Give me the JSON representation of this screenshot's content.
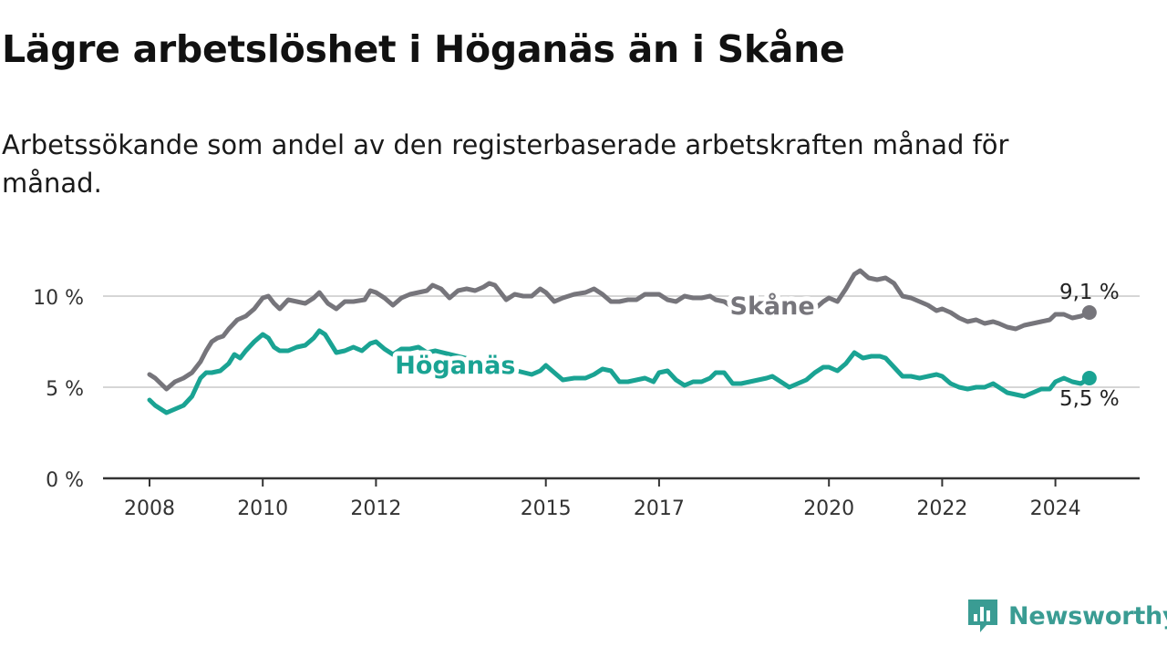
{
  "title": "Lägre arbetslöshet i Höganäs än i Skåne",
  "subtitle": "Arbetssökande som andel av den registerbaserade arbetskraften månad för månad.",
  "brand": {
    "name": "Newsworthy",
    "color": "#3a9c93",
    "icon": "newsworthy-logo-icon"
  },
  "chart_data": {
    "type": "line",
    "title": "Lägre arbetslöshet i Höganäs än i Skåne",
    "xlabel": "",
    "ylabel": "",
    "xlim": [
      2007.5,
      2025.3
    ],
    "ylim": [
      0,
      12
    ],
    "grid": true,
    "y_ticks": [
      {
        "value": 0,
        "label": "0 %"
      },
      {
        "value": 5,
        "label": "5 %"
      },
      {
        "value": 10,
        "label": "10 %"
      }
    ],
    "x_ticks": [
      {
        "value": 2008,
        "label": "2008"
      },
      {
        "value": 2010,
        "label": "2010"
      },
      {
        "value": 2012,
        "label": "2012"
      },
      {
        "value": 2015,
        "label": "2015"
      },
      {
        "value": 2017,
        "label": "2017"
      },
      {
        "value": 2020,
        "label": "2020"
      },
      {
        "value": 2022,
        "label": "2022"
      },
      {
        "value": 2024,
        "label": "2024"
      }
    ],
    "series": [
      {
        "name": "Skåne",
        "color": "#76757b",
        "label_at": 2019.0,
        "end_label": "9,1 %",
        "x": [
          2008.0,
          2008.1,
          2008.2,
          2008.3,
          2008.45,
          2008.6,
          2008.75,
          2008.9,
          2009.0,
          2009.1,
          2009.2,
          2009.3,
          2009.4,
          2009.55,
          2009.7,
          2009.85,
          2010.0,
          2010.1,
          2010.2,
          2010.3,
          2010.45,
          2010.6,
          2010.75,
          2010.9,
          2011.0,
          2011.15,
          2011.3,
          2011.45,
          2011.6,
          2011.8,
          2011.9,
          2012.0,
          2012.15,
          2012.3,
          2012.45,
          2012.6,
          2012.75,
          2012.9,
          2013.0,
          2013.15,
          2013.3,
          2013.45,
          2013.6,
          2013.75,
          2013.9,
          2014.0,
          2014.1,
          2014.3,
          2014.45,
          2014.6,
          2014.75,
          2014.9,
          2015.0,
          2015.15,
          2015.3,
          2015.5,
          2015.7,
          2015.85,
          2016.0,
          2016.15,
          2016.3,
          2016.45,
          2016.6,
          2016.75,
          2016.9,
          2017.0,
          2017.15,
          2017.3,
          2017.45,
          2017.6,
          2017.75,
          2017.9,
          2018.0,
          2018.15,
          2018.3,
          2018.45,
          2019.75,
          2019.9,
          2020.0,
          2020.15,
          2020.3,
          2020.45,
          2020.55,
          2020.7,
          2020.85,
          2021.0,
          2021.15,
          2021.3,
          2021.45,
          2021.6,
          2021.75,
          2021.9,
          2022.0,
          2022.15,
          2022.3,
          2022.45,
          2022.6,
          2022.75,
          2022.9,
          2023.0,
          2023.15,
          2023.3,
          2023.45,
          2023.6,
          2023.75,
          2023.9,
          2024.0,
          2024.15,
          2024.3,
          2024.45,
          2024.6
        ],
        "values": [
          5.7,
          5.5,
          5.2,
          4.9,
          5.3,
          5.5,
          5.8,
          6.4,
          7.0,
          7.5,
          7.7,
          7.8,
          8.2,
          8.7,
          8.9,
          9.3,
          9.9,
          10.0,
          9.6,
          9.3,
          9.8,
          9.7,
          9.6,
          9.9,
          10.2,
          9.6,
          9.3,
          9.7,
          9.7,
          9.8,
          10.3,
          10.2,
          9.9,
          9.5,
          9.9,
          10.1,
          10.2,
          10.3,
          10.6,
          10.4,
          9.9,
          10.3,
          10.4,
          10.3,
          10.5,
          10.7,
          10.6,
          9.8,
          10.1,
          10.0,
          10.0,
          10.4,
          10.2,
          9.7,
          9.9,
          10.1,
          10.2,
          10.4,
          10.1,
          9.7,
          9.7,
          9.8,
          9.8,
          10.1,
          10.1,
          10.1,
          9.8,
          9.7,
          10.0,
          9.9,
          9.9,
          10.0,
          9.8,
          9.7,
          9.4,
          9.2,
          9.3,
          9.7,
          9.9,
          9.7,
          10.4,
          11.2,
          11.4,
          11.0,
          10.9,
          11.0,
          10.7,
          10.0,
          9.9,
          9.7,
          9.5,
          9.2,
          9.3,
          9.1,
          8.8,
          8.6,
          8.7,
          8.5,
          8.6,
          8.5,
          8.3,
          8.2,
          8.4,
          8.5,
          8.6,
          8.7,
          9.0,
          9.0,
          8.8,
          8.9,
          9.1
        ]
      },
      {
        "name": "Höganäs",
        "color": "#1aa393",
        "label_at": 2013.4,
        "end_label": "5,5 %",
        "x": [
          2008.0,
          2008.1,
          2008.2,
          2008.3,
          2008.45,
          2008.6,
          2008.75,
          2008.9,
          2009.0,
          2009.1,
          2009.25,
          2009.4,
          2009.5,
          2009.6,
          2009.7,
          2009.85,
          2010.0,
          2010.1,
          2010.2,
          2010.3,
          2010.45,
          2010.6,
          2010.75,
          2010.9,
          2011.0,
          2011.1,
          2011.2,
          2011.3,
          2011.45,
          2011.6,
          2011.75,
          2011.9,
          2012.0,
          2012.15,
          2012.3,
          2012.45,
          2012.6,
          2012.75,
          2012.9,
          2013.05,
          2014.75,
          2014.9,
          2015.0,
          2015.15,
          2015.3,
          2015.5,
          2015.7,
          2015.85,
          2016.0,
          2016.15,
          2016.3,
          2016.45,
          2016.6,
          2016.75,
          2016.9,
          2017.0,
          2017.15,
          2017.3,
          2017.45,
          2017.6,
          2017.75,
          2017.9,
          2018.0,
          2018.15,
          2018.3,
          2018.45,
          2018.6,
          2018.75,
          2018.9,
          2019.0,
          2019.15,
          2019.3,
          2019.45,
          2019.6,
          2019.75,
          2019.9,
          2020.0,
          2020.15,
          2020.3,
          2020.45,
          2020.6,
          2020.75,
          2020.9,
          2021.0,
          2021.15,
          2021.3,
          2021.45,
          2021.6,
          2021.75,
          2021.9,
          2022.0,
          2022.15,
          2022.3,
          2022.45,
          2022.6,
          2022.75,
          2022.9,
          2023.0,
          2023.15,
          2023.3,
          2023.45,
          2023.6,
          2023.75,
          2023.9,
          2024.0,
          2024.15,
          2024.3,
          2024.45,
          2024.6
        ],
        "values": [
          4.3,
          4.0,
          3.8,
          3.6,
          3.8,
          4.0,
          4.5,
          5.5,
          5.8,
          5.8,
          5.9,
          6.3,
          6.8,
          6.6,
          7.0,
          7.5,
          7.9,
          7.7,
          7.2,
          7.0,
          7.0,
          7.2,
          7.3,
          7.7,
          8.1,
          7.9,
          7.4,
          6.9,
          7.0,
          7.2,
          7.0,
          7.4,
          7.5,
          7.1,
          6.8,
          7.1,
          7.1,
          7.2,
          6.9,
          7.0,
          5.7,
          5.9,
          6.2,
          5.8,
          5.4,
          5.5,
          5.5,
          5.7,
          6.0,
          5.9,
          5.3,
          5.3,
          5.4,
          5.5,
          5.3,
          5.8,
          5.9,
          5.4,
          5.1,
          5.3,
          5.3,
          5.5,
          5.8,
          5.8,
          5.2,
          5.2,
          5.3,
          5.4,
          5.5,
          5.6,
          5.3,
          5.0,
          5.2,
          5.4,
          5.8,
          6.1,
          6.1,
          5.9,
          6.3,
          6.9,
          6.6,
          6.7,
          6.7,
          6.6,
          6.1,
          5.6,
          5.6,
          5.5,
          5.6,
          5.7,
          5.6,
          5.2,
          5.0,
          4.9,
          5.0,
          5.0,
          5.2,
          5.0,
          4.7,
          4.6,
          4.5,
          4.7,
          4.9,
          4.9,
          5.3,
          5.5,
          5.3,
          5.2,
          5.5
        ]
      }
    ]
  }
}
